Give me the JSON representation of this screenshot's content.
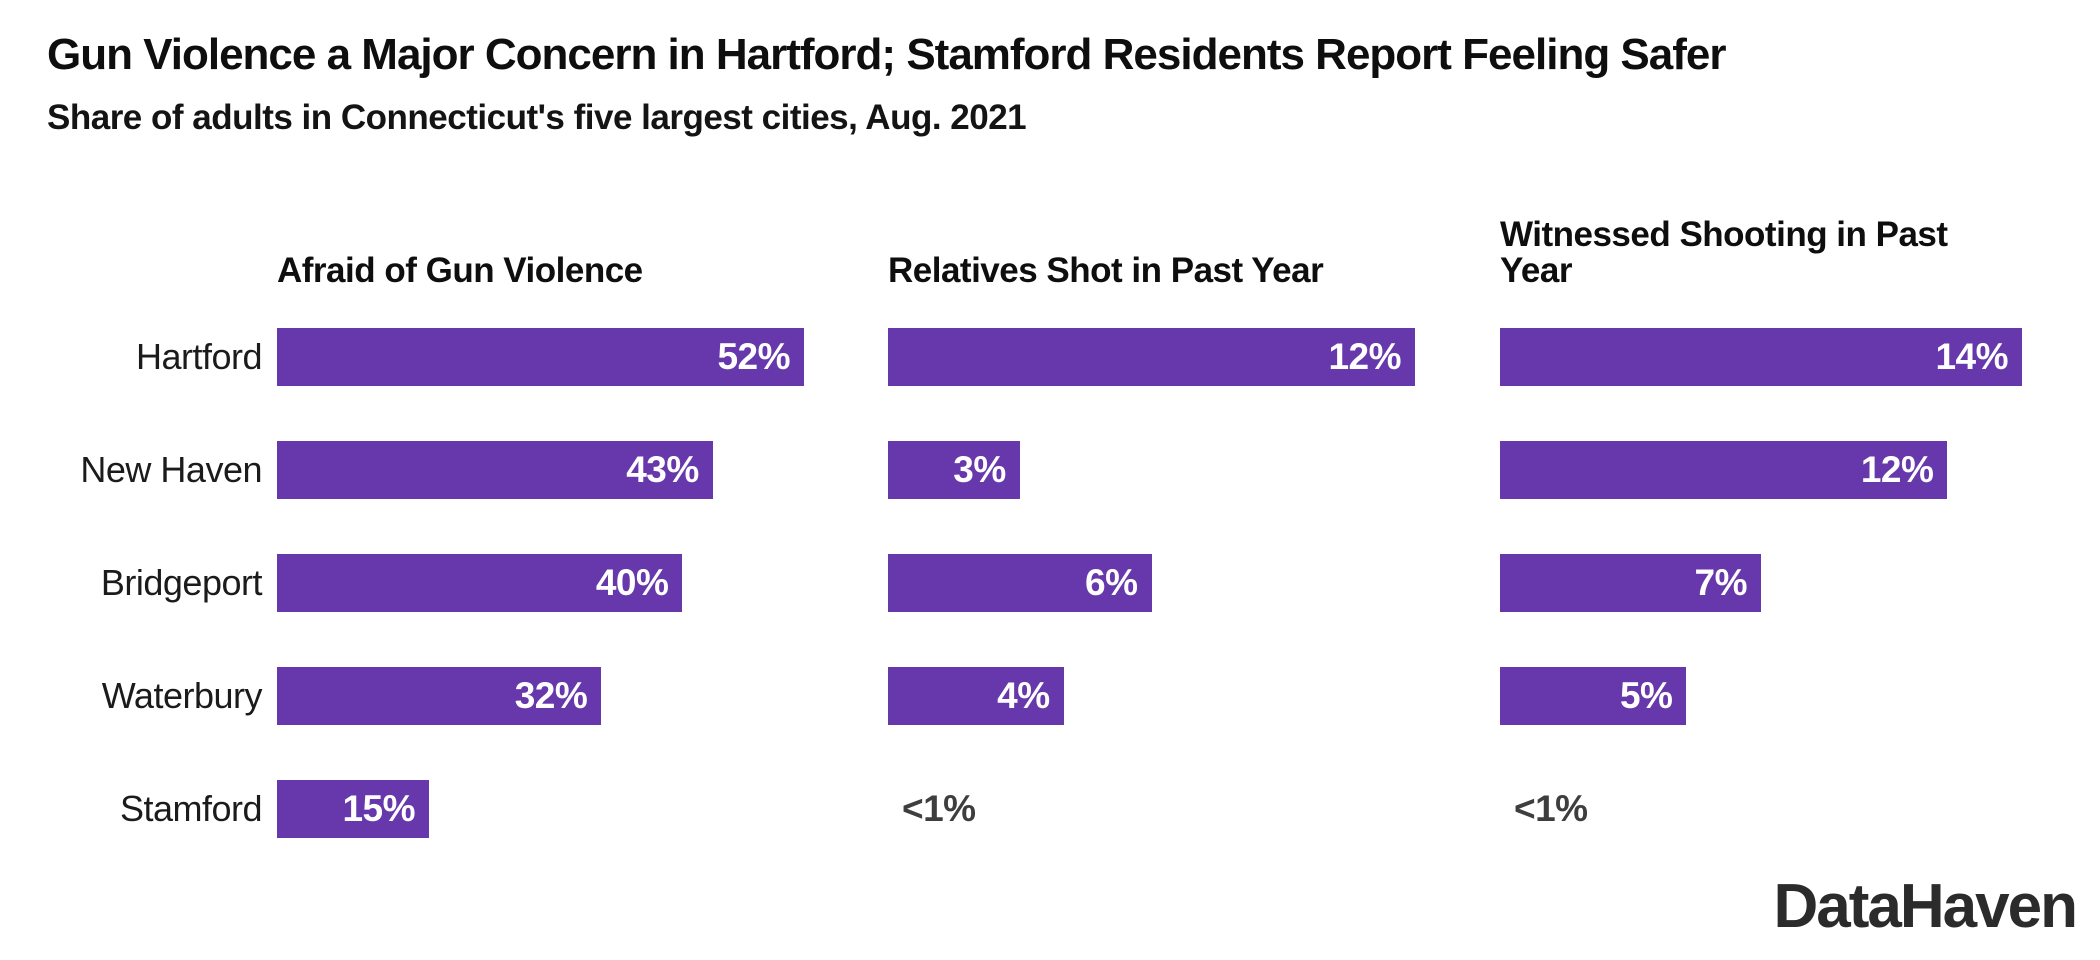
{
  "header": {
    "title": "Gun Violence a Major Concern in Hartford; Stamford Residents Report Feeling Safer",
    "subtitle": "Share of adults in Connecticut's five largest cities, Aug. 2021"
  },
  "branding": {
    "logo_text": "DataHaven"
  },
  "chart_data": {
    "type": "bar",
    "orientation": "horizontal",
    "grid": false,
    "legend_position": "none",
    "bar_color": "#6638AB",
    "value_label_color_inside": "#ffffff",
    "value_label_color_outside": "#3e3e3e",
    "categories": [
      "Hartford",
      "New Haven",
      "Bridgeport",
      "Waterbury",
      "Stamford"
    ],
    "series": [
      {
        "name": "Afraid of Gun Violence",
        "values": [
          52,
          43,
          40,
          32,
          15
        ],
        "labels": [
          "52%",
          "43%",
          "40%",
          "32%",
          "15%"
        ]
      },
      {
        "name": "Relatives Shot in Past Year",
        "values": [
          12,
          3,
          6,
          4,
          null
        ],
        "labels": [
          "12%",
          "3%",
          "6%",
          "4%",
          "<1%"
        ]
      },
      {
        "name": "Witnessed Shooting in Past Year",
        "values": [
          14,
          12,
          7,
          5,
          null
        ],
        "labels": [
          "14%",
          "12%",
          "7%",
          "5%",
          "<1%"
        ]
      }
    ],
    "axis_note": "no axes or gridlines shown; each panel scaled so its largest bar fills the panel width"
  }
}
